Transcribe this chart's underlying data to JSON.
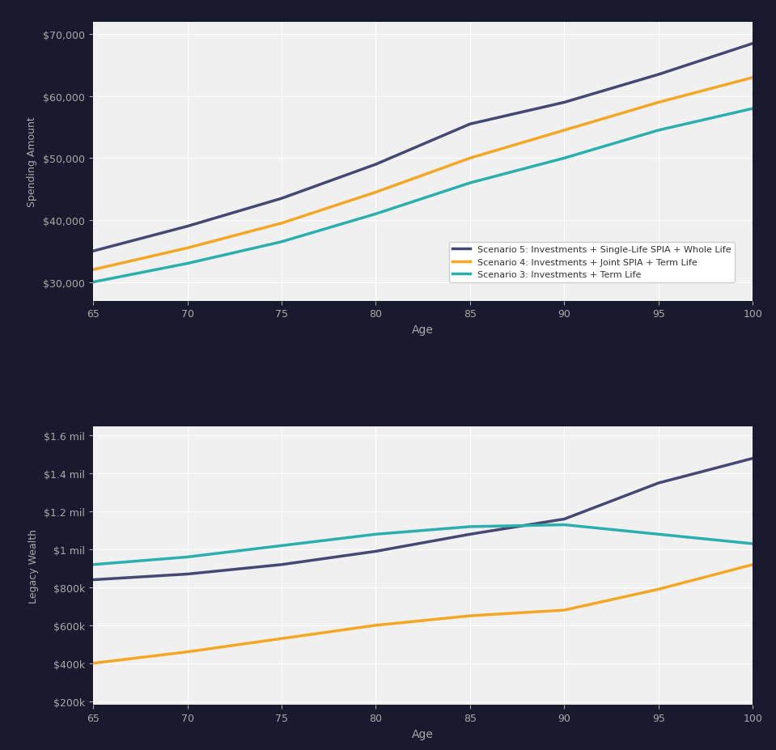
{
  "ages": [
    65,
    70,
    75,
    80,
    85,
    90,
    95,
    100
  ],
  "spending": {
    "scenario5": [
      35000,
      39000,
      43500,
      49000,
      55500,
      59000,
      63500,
      68500
    ],
    "scenario4": [
      32000,
      35500,
      39500,
      44500,
      50000,
      54500,
      59000,
      63000
    ],
    "scenario3": [
      30000,
      33000,
      36500,
      41000,
      46000,
      50000,
      54500,
      58000
    ]
  },
  "legacy": {
    "scenario5": [
      840000,
      870000,
      920000,
      990000,
      1080000,
      1160000,
      1350000,
      1480000
    ],
    "scenario4": [
      400000,
      460000,
      530000,
      600000,
      650000,
      680000,
      790000,
      920000
    ],
    "scenario3": [
      920000,
      960000,
      1020000,
      1080000,
      1120000,
      1130000,
      1080000,
      1030000
    ]
  },
  "colors": {
    "scenario5": "#454872",
    "scenario4": "#F5A623",
    "scenario3": "#2AAFAD"
  },
  "labels": {
    "scenario5": "Scenario 5: Investments + Single-Life SPIA + Whole Life",
    "scenario4": "Scenario 4: Investments + Joint SPIA + Term Life",
    "scenario3": "Scenario 3: Investments + Term Life"
  },
  "spending_ylim": [
    27000,
    72000
  ],
  "spending_yticks": [
    30000,
    40000,
    50000,
    60000,
    70000
  ],
  "legacy_ylim": [
    180000,
    1650000
  ],
  "legacy_yticks": [
    200000,
    400000,
    600000,
    800000,
    1000000,
    1200000,
    1400000,
    1600000
  ],
  "xlabel": "Age",
  "ylabel_top": "Spending Amount",
  "ylabel_bottom": "Legacy Wealth",
  "background_color": "#1a1a2e",
  "plot_bg": "#f0f0f0",
  "grid_color": "#ffffff",
  "text_color": "#aaaaaa",
  "linewidth": 2.5
}
